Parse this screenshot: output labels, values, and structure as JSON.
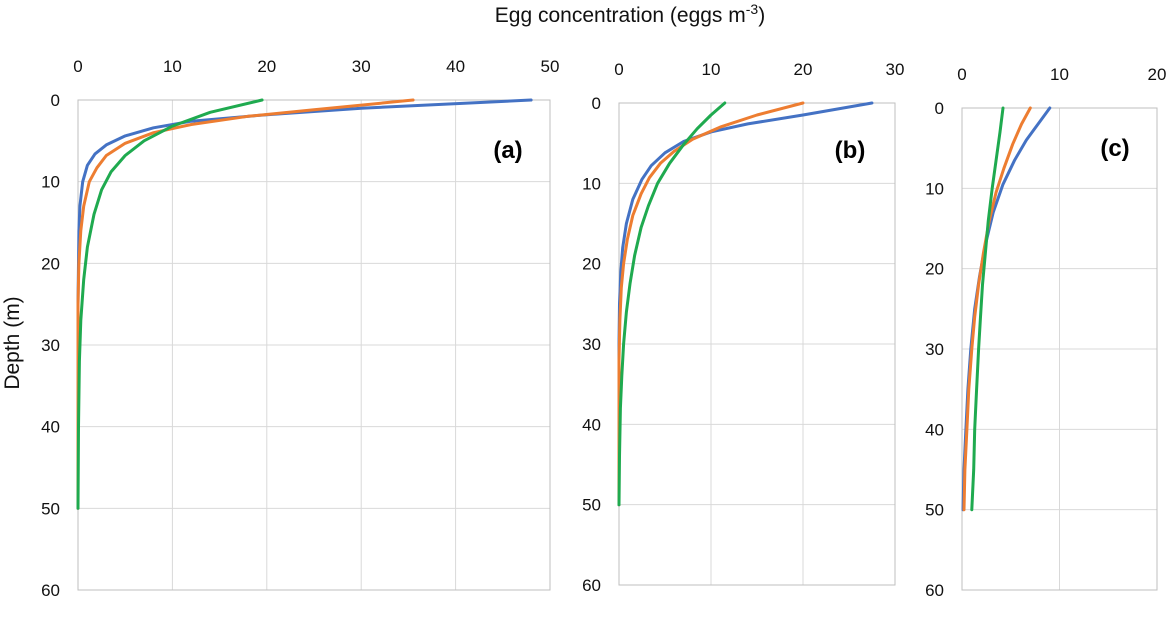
{
  "figure": {
    "xlabel": "Egg concentration (eggs m",
    "xlabel_sup": "-3",
    "xlabel_end": ")",
    "ylabel": "Depth (m)"
  },
  "colors": {
    "blue": "#4472c4",
    "orange": "#ed7d31",
    "green": "#1faa4f"
  },
  "chart_data": [
    {
      "type": "line",
      "panel_label": "(a)",
      "xlim": [
        0,
        50
      ],
      "ylim": [
        0,
        60
      ],
      "y_inverted": true,
      "x_ticks": [
        "0",
        "10",
        "20",
        "30",
        "40",
        "50"
      ],
      "y_ticks": [
        "0",
        "10",
        "20",
        "30",
        "40",
        "50",
        "60"
      ],
      "grid": true,
      "series": [
        {
          "color": "blue",
          "points": [
            [
              48,
              0
            ],
            [
              30,
              1
            ],
            [
              20,
              1.8
            ],
            [
              12,
              2.6
            ],
            [
              8,
              3.4
            ],
            [
              5,
              4.4
            ],
            [
              3,
              5.5
            ],
            [
              1.8,
              6.6
            ],
            [
              1,
              8
            ],
            [
              0.5,
              10
            ],
            [
              0.2,
              13
            ],
            [
              0.1,
              16
            ],
            [
              0.05,
              20
            ],
            [
              0,
              25
            ],
            [
              0,
              50
            ]
          ]
        },
        {
          "color": "orange",
          "points": [
            [
              35.5,
              0
            ],
            [
              25,
              1.2
            ],
            [
              18,
              2
            ],
            [
              12,
              3
            ],
            [
              8,
              4
            ],
            [
              5,
              5.3
            ],
            [
              3,
              6.8
            ],
            [
              2,
              8.3
            ],
            [
              1.2,
              10
            ],
            [
              0.6,
              13
            ],
            [
              0.3,
              16
            ],
            [
              0.1,
              20
            ],
            [
              0,
              25
            ],
            [
              0,
              50
            ]
          ]
        },
        {
          "color": "green",
          "points": [
            [
              19.5,
              0
            ],
            [
              14,
              1.5
            ],
            [
              10,
              3.2
            ],
            [
              7,
              5
            ],
            [
              5,
              6.8
            ],
            [
              3.5,
              8.8
            ],
            [
              2.5,
              11
            ],
            [
              1.7,
              14
            ],
            [
              1,
              18
            ],
            [
              0.6,
              22
            ],
            [
              0.3,
              27
            ],
            [
              0.15,
              32
            ],
            [
              0.05,
              40
            ],
            [
              0,
              50
            ]
          ]
        }
      ]
    },
    {
      "type": "line",
      "panel_label": "(b)",
      "xlim": [
        0,
        30
      ],
      "ylim": [
        0,
        60
      ],
      "y_inverted": true,
      "x_ticks": [
        "0",
        "10",
        "20",
        "30"
      ],
      "y_ticks": [
        "0",
        "10",
        "20",
        "30",
        "40",
        "50",
        "60"
      ],
      "grid": true,
      "series": [
        {
          "color": "blue",
          "points": [
            [
              27.5,
              0
            ],
            [
              20,
              1.5
            ],
            [
              14,
              2.6
            ],
            [
              10,
              3.6
            ],
            [
              7,
              4.8
            ],
            [
              5,
              6.2
            ],
            [
              3.5,
              7.8
            ],
            [
              2.5,
              9.5
            ],
            [
              1.5,
              12
            ],
            [
              0.8,
              15
            ],
            [
              0.4,
              18
            ],
            [
              0.2,
              21
            ],
            [
              0.05,
              25
            ],
            [
              0,
              30
            ],
            [
              0,
              50
            ]
          ]
        },
        {
          "color": "orange",
          "points": [
            [
              20,
              0
            ],
            [
              15,
              1.5
            ],
            [
              11,
              3
            ],
            [
              8,
              4.5
            ],
            [
              6,
              6
            ],
            [
              4.5,
              7.5
            ],
            [
              3.3,
              9.3
            ],
            [
              2.4,
              11.3
            ],
            [
              1.5,
              14
            ],
            [
              0.9,
              17
            ],
            [
              0.5,
              20
            ],
            [
              0.25,
              23
            ],
            [
              0.1,
              27
            ],
            [
              0,
              32
            ],
            [
              0,
              50
            ]
          ]
        },
        {
          "color": "green",
          "points": [
            [
              11.5,
              0
            ],
            [
              10,
              1.5
            ],
            [
              8.5,
              3.2
            ],
            [
              7,
              5.2
            ],
            [
              5.5,
              7.5
            ],
            [
              4.2,
              10
            ],
            [
              3.2,
              12.8
            ],
            [
              2.4,
              15.5
            ],
            [
              1.7,
              19
            ],
            [
              1.2,
              22.5
            ],
            [
              0.8,
              26
            ],
            [
              0.5,
              30
            ],
            [
              0.3,
              34
            ],
            [
              0.15,
              38
            ],
            [
              0.05,
              44
            ],
            [
              0,
              50
            ]
          ]
        }
      ]
    },
    {
      "type": "line",
      "panel_label": "(c)",
      "xlim": [
        0,
        20
      ],
      "ylim": [
        0,
        60
      ],
      "y_inverted": true,
      "x_ticks": [
        "0",
        "10",
        "20"
      ],
      "y_ticks": [
        "0",
        "10",
        "20",
        "30",
        "40",
        "50",
        "60"
      ],
      "grid": true,
      "series": [
        {
          "color": "blue",
          "points": [
            [
              9,
              0
            ],
            [
              7.8,
              2
            ],
            [
              6.6,
              4
            ],
            [
              5.4,
              6.5
            ],
            [
              4.2,
              9.5
            ],
            [
              3.2,
              13
            ],
            [
              2.4,
              17
            ],
            [
              1.8,
              21
            ],
            [
              1.3,
              25
            ],
            [
              0.9,
              30
            ],
            [
              0.6,
              35
            ],
            [
              0.4,
              40
            ],
            [
              0.2,
              45
            ],
            [
              0.1,
              50
            ]
          ]
        },
        {
          "color": "orange",
          "points": [
            [
              7,
              0
            ],
            [
              6.1,
              2
            ],
            [
              5.2,
              4.5
            ],
            [
              4.3,
              7.5
            ],
            [
              3.5,
              10.5
            ],
            [
              2.8,
              14
            ],
            [
              2.2,
              18
            ],
            [
              1.7,
              22
            ],
            [
              1.3,
              26
            ],
            [
              1,
              30
            ],
            [
              0.7,
              35
            ],
            [
              0.5,
              40
            ],
            [
              0.3,
              45
            ],
            [
              0.2,
              50
            ]
          ]
        },
        {
          "color": "green",
          "points": [
            [
              4.2,
              0
            ],
            [
              3.9,
              3
            ],
            [
              3.5,
              6.5
            ],
            [
              3.1,
              10
            ],
            [
              2.7,
              14
            ],
            [
              2.4,
              18
            ],
            [
              2.1,
              22
            ],
            [
              1.9,
              26
            ],
            [
              1.7,
              30
            ],
            [
              1.5,
              35
            ],
            [
              1.3,
              40
            ],
            [
              1.2,
              45
            ],
            [
              1,
              50
            ]
          ]
        }
      ]
    }
  ]
}
